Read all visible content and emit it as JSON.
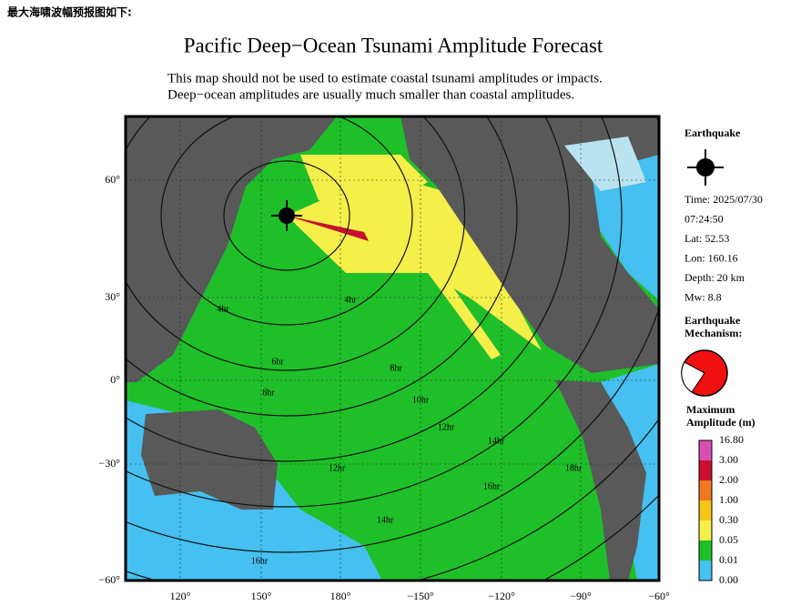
{
  "caption": "最大海啸波幅预报图如下:",
  "header": {
    "title": "Pacific Deep−Ocean Tsunami Amplitude Forecast",
    "subtitle": [
      "This map should not be used to estimate coastal tsunami amplitudes or impacts.",
      "Deep−ocean amplitudes are usually much smaller than coastal amplitudes."
    ]
  },
  "map": {
    "lat_labels": [
      "60°",
      "30°",
      "0°",
      "−30°",
      "−60°"
    ],
    "lon_labels": [
      "120°",
      "150°",
      "180°",
      "−150°",
      "−120°",
      "−90°",
      "−60°"
    ],
    "contour_labels": [
      "4hr",
      "4hr",
      "6hr",
      "8hr",
      "8hr",
      "10hr",
      "12hr",
      "12hr",
      "14hr",
      "14hr",
      "16hr",
      "16hr",
      "18hr"
    ]
  },
  "legend": {
    "earthquake_title": "Earthquake",
    "details": [
      "Time: 2025/07/30",
      "07:24:50",
      "Lat: 52.53",
      "Lon: 160.16",
      "Depth: 20 km",
      "Mw: 8.8"
    ],
    "mechanism_title": [
      "Earthquake",
      "Mechanism:"
    ],
    "amplitude_title": [
      "Maximum",
      "Amplitude (m)"
    ],
    "scale_labels": [
      "16.80",
      "3.00",
      "2.00",
      "1.00",
      "0.30",
      "0.05",
      "0.01",
      "0.00"
    ]
  }
}
